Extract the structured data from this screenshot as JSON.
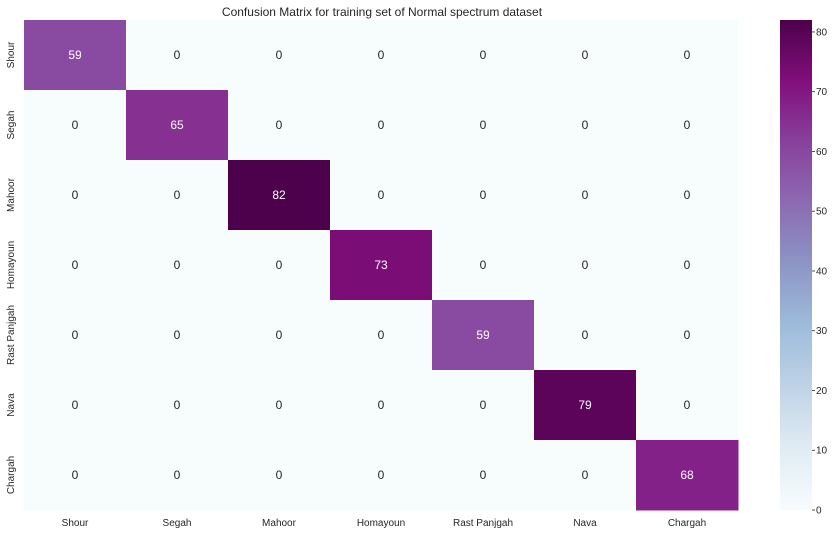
{
  "chart_data": {
    "type": "heatmap",
    "title": "Confusion Matrix for training set of Normal spectrum dataset",
    "x_categories": [
      "Shour",
      "Segah",
      "Mahoor",
      "Homayoun",
      "Rast Panjgah",
      "Nava",
      "Chargah"
    ],
    "y_categories": [
      "Shour",
      "Segah",
      "Mahoor",
      "Homayoun",
      "Rast Panjgah",
      "Nava",
      "Chargah"
    ],
    "values": [
      [
        59,
        0,
        0,
        0,
        0,
        0,
        0
      ],
      [
        0,
        65,
        0,
        0,
        0,
        0,
        0
      ],
      [
        0,
        0,
        82,
        0,
        0,
        0,
        0
      ],
      [
        0,
        0,
        0,
        73,
        0,
        0,
        0
      ],
      [
        0,
        0,
        0,
        0,
        59,
        0,
        0
      ],
      [
        0,
        0,
        0,
        0,
        0,
        79,
        0
      ],
      [
        0,
        0,
        0,
        0,
        0,
        0,
        68
      ]
    ],
    "colormap": "BuPu",
    "colorbar": {
      "range": [
        0,
        82
      ],
      "ticks": [
        0,
        10,
        20,
        30,
        40,
        50,
        60,
        70,
        80
      ]
    },
    "annotations": true
  }
}
